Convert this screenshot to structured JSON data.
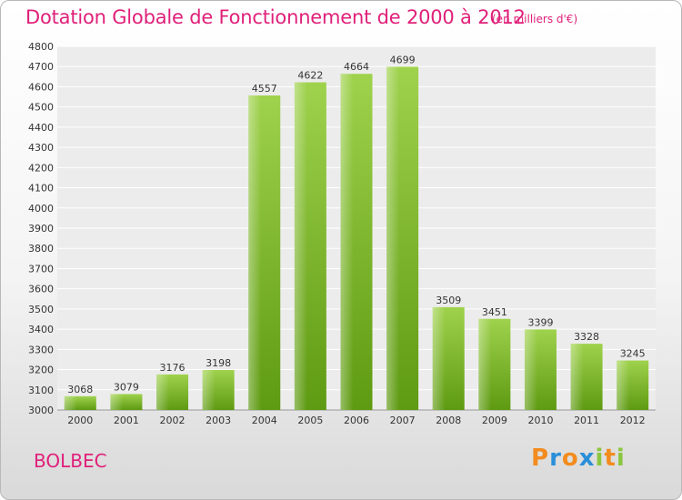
{
  "chart_data": {
    "type": "bar",
    "title": "Dotation Globale de Fonctionnement de 2000 à 2012",
    "subtitle": "(en milliers d'€)",
    "categories": [
      "2000",
      "2001",
      "2002",
      "2003",
      "2004",
      "2005",
      "2006",
      "2007",
      "2008",
      "2009",
      "2010",
      "2011",
      "2012"
    ],
    "values": [
      3068,
      3079,
      3176,
      3198,
      4557,
      4622,
      4664,
      4699,
      3509,
      3451,
      3399,
      3328,
      3245
    ],
    "ylim": [
      3000,
      4800
    ],
    "yticks": [
      3000,
      3100,
      3200,
      3300,
      3400,
      3500,
      3600,
      3700,
      3800,
      3900,
      4000,
      4100,
      4200,
      4300,
      4400,
      4500,
      4600,
      4700,
      4800
    ],
    "grid": true,
    "bar_color": "#8cc63f",
    "title_color": "#e0207a"
  },
  "footer": {
    "city": "BOLBEC",
    "logo_letters": [
      "P",
      "r",
      "o",
      "x",
      "i",
      "t",
      "i"
    ],
    "logo_colors": [
      "#f28c1e",
      "#2a8fd8",
      "#f28c1e",
      "#2a8fd8",
      "#8cc63f",
      "#f28c1e",
      "#8cc63f"
    ]
  }
}
